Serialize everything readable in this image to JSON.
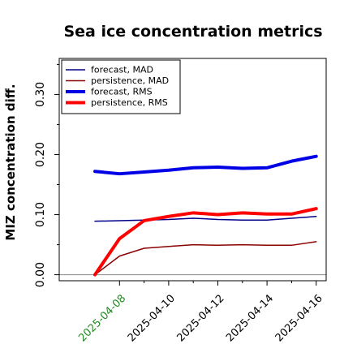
{
  "chart_data": {
    "type": "line",
    "title": "Sea ice concentration metrics",
    "xlabel": "",
    "ylabel": "MIZ concentration diff.",
    "x": [
      "2025-04-07",
      "2025-04-08",
      "2025-04-09",
      "2025-04-10",
      "2025-04-11",
      "2025-04-12",
      "2025-04-13",
      "2025-04-14",
      "2025-04-15",
      "2025-04-16"
    ],
    "xticks": [
      {
        "label": "2025-04-08",
        "color": "#228B22"
      },
      {
        "label": "2025-04-10",
        "color": "#000000"
      },
      {
        "label": "2025-04-12",
        "color": "#000000"
      },
      {
        "label": "2025-04-14",
        "color": "#000000"
      },
      {
        "label": "2025-04-16",
        "color": "#000000"
      }
    ],
    "yticks": [
      "0.00",
      "0.10",
      "0.20",
      "0.30"
    ],
    "ylim": [
      -0.01,
      0.36
    ],
    "grid": false,
    "legend_position": "top-left",
    "baseline": 0,
    "series": [
      {
        "name": "forecast,  MAD",
        "color": "#00008B",
        "width": 1.5,
        "values": [
          0.089,
          0.09,
          0.091,
          0.092,
          0.094,
          0.092,
          0.091,
          0.091,
          0.094,
          0.097
        ]
      },
      {
        "name": "persistence, MAD",
        "color": "#8B0000",
        "width": 1.5,
        "values": [
          0.0,
          0.031,
          0.044,
          0.047,
          0.05,
          0.049,
          0.05,
          0.049,
          0.049,
          0.055
        ]
      },
      {
        "name": "forecast,  RMS",
        "color": "#0000E6",
        "width": 4,
        "values": [
          0.172,
          0.168,
          0.171,
          0.174,
          0.178,
          0.179,
          0.177,
          0.178,
          0.189,
          0.197
        ]
      },
      {
        "name": "persistence, RMS",
        "color": "#FF0000",
        "width": 4,
        "values": [
          0.0,
          0.06,
          0.09,
          0.097,
          0.103,
          0.1,
          0.103,
          0.101,
          0.101,
          0.11
        ]
      }
    ]
  }
}
